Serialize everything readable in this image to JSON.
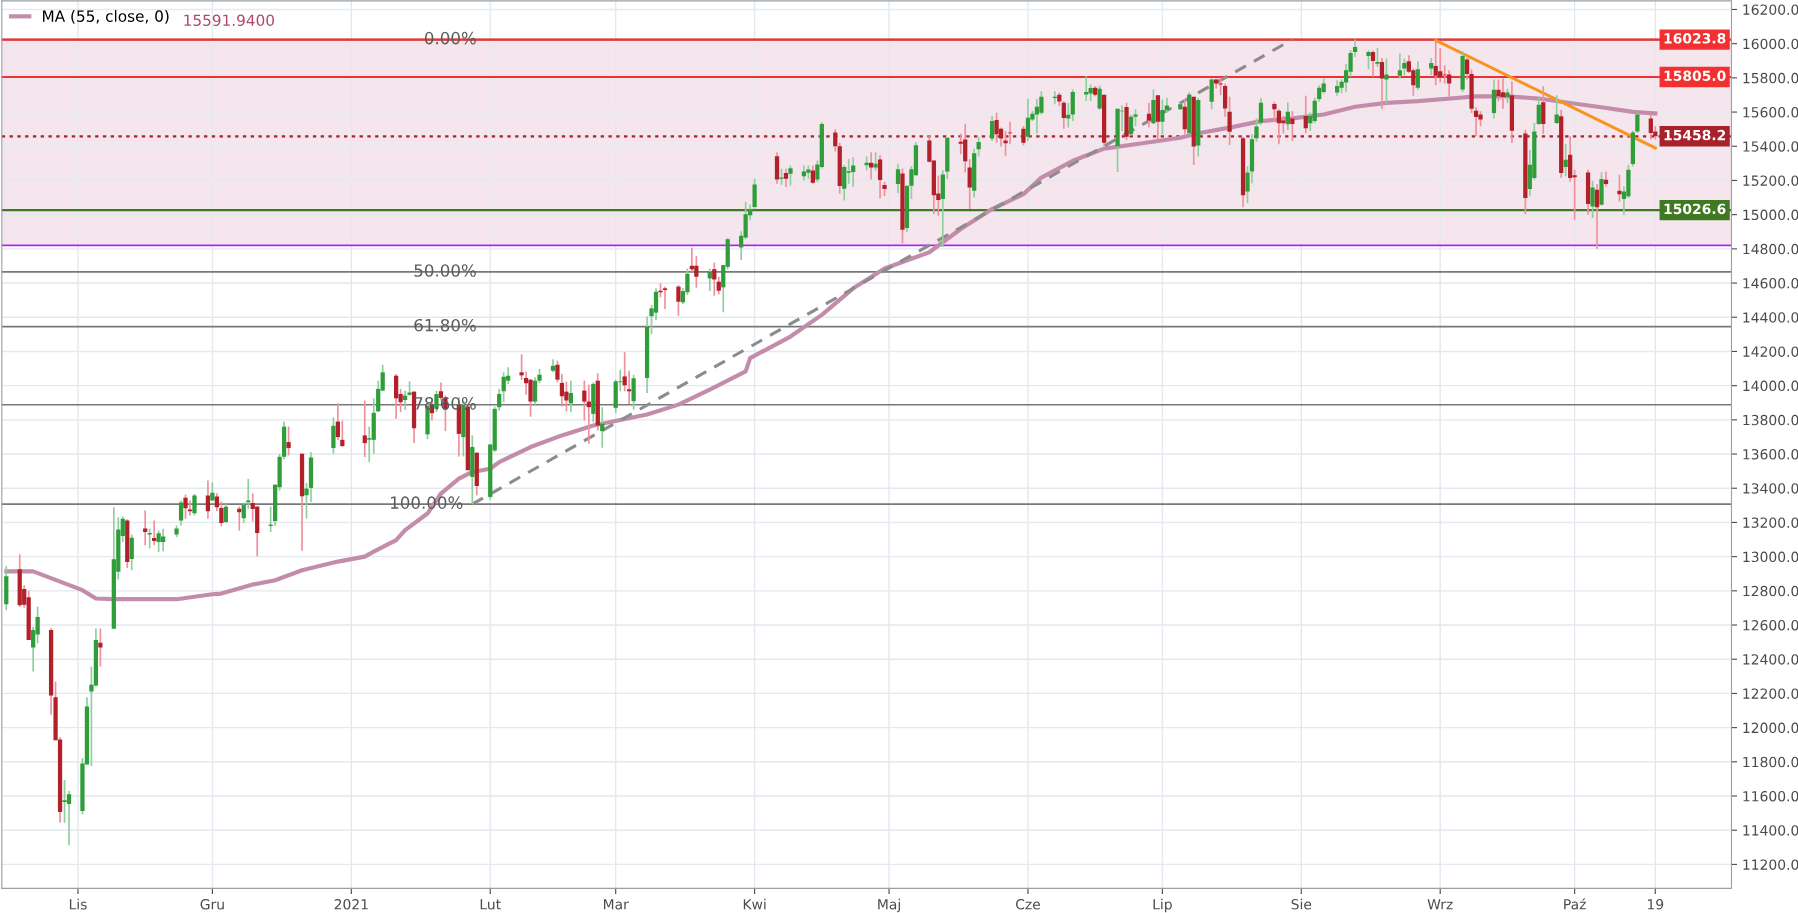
{
  "chart_data": {
    "type": "candlestick",
    "x": [
      "2020-10-16",
      "2020-10-19",
      "2020-10-20",
      "2020-10-21",
      "2020-10-22",
      "2020-10-23",
      "2020-10-26",
      "2020-10-27",
      "2020-10-28",
      "2020-10-29",
      "2020-10-30",
      "2020-11-02",
      "2020-11-03",
      "2020-11-04",
      "2020-11-05",
      "2020-11-06",
      "2020-11-09",
      "2020-11-10",
      "2020-11-11",
      "2020-11-12",
      "2020-11-13",
      "2020-11-16",
      "2020-11-17",
      "2020-11-18",
      "2020-11-19",
      "2020-11-20",
      "2020-11-23",
      "2020-11-24",
      "2020-11-25",
      "2020-11-26",
      "2020-11-27",
      "2020-11-30",
      "2020-12-01",
      "2020-12-02",
      "2020-12-03",
      "2020-12-04",
      "2020-12-07",
      "2020-12-08",
      "2020-12-09",
      "2020-12-10",
      "2020-12-11",
      "2020-12-14",
      "2020-12-15",
      "2020-12-16",
      "2020-12-17",
      "2020-12-18",
      "2020-12-21",
      "2020-12-22",
      "2020-12-23",
      "2020-12-28",
      "2020-12-29",
      "2020-12-30",
      "2021-01-04",
      "2021-01-05",
      "2021-01-06",
      "2021-01-07",
      "2021-01-08",
      "2021-01-11",
      "2021-01-12",
      "2021-01-13",
      "2021-01-14",
      "2021-01-15",
      "2021-01-18",
      "2021-01-19",
      "2021-01-20",
      "2021-01-21",
      "2021-01-22",
      "2021-01-25",
      "2021-01-26",
      "2021-01-27",
      "2021-01-28",
      "2021-01-29",
      "2021-02-01",
      "2021-02-02",
      "2021-02-03",
      "2021-02-04",
      "2021-02-05",
      "2021-02-08",
      "2021-02-09",
      "2021-02-10",
      "2021-02-11",
      "2021-02-12",
      "2021-02-15",
      "2021-02-16",
      "2021-02-17",
      "2021-02-18",
      "2021-02-19",
      "2021-02-22",
      "2021-02-23",
      "2021-02-24",
      "2021-02-25",
      "2021-02-26",
      "2021-03-01",
      "2021-03-02",
      "2021-03-03",
      "2021-03-04",
      "2021-03-05",
      "2021-03-08",
      "2021-03-09",
      "2021-03-10",
      "2021-03-11",
      "2021-03-12",
      "2021-03-15",
      "2021-03-16",
      "2021-03-17",
      "2021-03-18",
      "2021-03-19",
      "2021-03-22",
      "2021-03-23",
      "2021-03-24",
      "2021-03-25",
      "2021-03-26",
      "2021-03-29",
      "2021-03-30",
      "2021-03-31",
      "2021-04-01",
      "2021-04-06",
      "2021-04-07",
      "2021-04-08",
      "2021-04-09",
      "2021-04-12",
      "2021-04-13",
      "2021-04-14",
      "2021-04-15",
      "2021-04-16",
      "2021-04-19",
      "2021-04-20",
      "2021-04-21",
      "2021-04-22",
      "2021-04-23",
      "2021-04-26",
      "2021-04-27",
      "2021-04-28",
      "2021-04-29",
      "2021-04-30",
      "2021-05-03",
      "2021-05-04",
      "2021-05-05",
      "2021-05-06",
      "2021-05-07",
      "2021-05-10",
      "2021-05-11",
      "2021-05-12",
      "2021-05-13",
      "2021-05-14",
      "2021-05-17",
      "2021-05-18",
      "2021-05-19",
      "2021-05-20",
      "2021-05-21",
      "2021-05-24",
      "2021-05-25",
      "2021-05-26",
      "2021-05-27",
      "2021-05-28",
      "2021-05-31",
      "2021-06-01",
      "2021-06-02",
      "2021-06-03",
      "2021-06-04",
      "2021-06-07",
      "2021-06-08",
      "2021-06-09",
      "2021-06-10",
      "2021-06-11",
      "2021-06-14",
      "2021-06-15",
      "2021-06-16",
      "2021-06-17",
      "2021-06-18",
      "2021-06-21",
      "2021-06-22",
      "2021-06-23",
      "2021-06-24",
      "2021-06-25",
      "2021-06-28",
      "2021-06-29",
      "2021-06-30",
      "2021-07-01",
      "2021-07-02",
      "2021-07-05",
      "2021-07-06",
      "2021-07-07",
      "2021-07-08",
      "2021-07-09",
      "2021-07-12",
      "2021-07-13",
      "2021-07-14",
      "2021-07-15",
      "2021-07-16",
      "2021-07-19",
      "2021-07-20",
      "2021-07-21",
      "2021-07-22",
      "2021-07-23",
      "2021-07-26",
      "2021-07-27",
      "2021-07-28",
      "2021-07-29",
      "2021-07-30",
      "2021-08-02",
      "2021-08-03",
      "2021-08-04",
      "2021-08-05",
      "2021-08-06",
      "2021-08-09",
      "2021-08-10",
      "2021-08-11",
      "2021-08-12",
      "2021-08-13",
      "2021-08-16",
      "2021-08-17",
      "2021-08-18",
      "2021-08-19",
      "2021-08-20",
      "2021-08-23",
      "2021-08-24",
      "2021-08-25",
      "2021-08-26",
      "2021-08-27",
      "2021-08-30",
      "2021-08-31",
      "2021-09-01",
      "2021-09-02",
      "2021-09-03",
      "2021-09-06",
      "2021-09-07",
      "2021-09-08",
      "2021-09-09",
      "2021-09-10",
      "2021-09-13",
      "2021-09-14",
      "2021-09-15",
      "2021-09-16",
      "2021-09-17",
      "2021-09-20",
      "2021-09-21",
      "2021-09-22",
      "2021-09-23",
      "2021-09-24",
      "2021-09-27",
      "2021-09-28",
      "2021-09-29",
      "2021-09-30",
      "2021-10-01",
      "2021-10-04",
      "2021-10-05",
      "2021-10-06",
      "2021-10-07",
      "2021-10-08",
      "2021-10-11",
      "2021-10-12",
      "2021-10-13",
      "2021-10-14",
      "2021-10-15",
      "2021-10-18",
      "2021-10-19"
    ],
    "ohlc": [
      [
        12722,
        12944,
        12687,
        12885
      ],
      [
        12926,
        13014,
        12707,
        12716
      ],
      [
        12810,
        12833,
        12701,
        12718
      ],
      [
        12763,
        12800,
        12512,
        12512
      ],
      [
        12468,
        12590,
        12328,
        12571
      ],
      [
        12544,
        12707,
        12493,
        12647
      ],
      [
        12571,
        12581,
        12076,
        12188
      ],
      [
        12177,
        12270,
        11926,
        11926
      ],
      [
        11930,
        11945,
        11444,
        11507
      ],
      [
        11565,
        11693,
        11444,
        11575
      ],
      [
        11553,
        11629,
        11312,
        11610
      ],
      [
        11512,
        11823,
        11493,
        11790
      ],
      [
        11784,
        12177,
        11784,
        12124
      ],
      [
        12211,
        12357,
        11775,
        12250
      ],
      [
        12246,
        12580,
        12241,
        12512
      ],
      [
        12497,
        12580,
        12357,
        12468
      ],
      [
        12578,
        13289,
        12578,
        12984
      ],
      [
        12911,
        13231,
        12866,
        13159
      ],
      [
        13120,
        13235,
        13085,
        13221
      ],
      [
        13212,
        13219,
        12934,
        12969
      ],
      [
        12986,
        13130,
        12920,
        13111
      ],
      [
        13165,
        13270,
        13066,
        13144
      ],
      [
        13130,
        13163,
        13047,
        13138
      ],
      [
        13109,
        13212,
        13066,
        13091
      ],
      [
        13085,
        13153,
        13027,
        13136
      ],
      [
        13085,
        13163,
        13031,
        13118
      ],
      [
        13130,
        13182,
        13115,
        13165
      ],
      [
        13212,
        13328,
        13182,
        13316
      ],
      [
        13344,
        13363,
        13221,
        13283
      ],
      [
        13276,
        13328,
        13241,
        13266
      ],
      [
        13254,
        13367,
        13241,
        13357
      ],
      [
        13357,
        13445,
        13221,
        13266
      ],
      [
        13328,
        13433,
        13328,
        13373
      ],
      [
        13351,
        13371,
        13266,
        13289
      ],
      [
        13285,
        13322,
        13177,
        13196
      ],
      [
        13202,
        13309,
        13196,
        13291
      ],
      [
        13280,
        13293,
        13153,
        13260
      ],
      [
        13225,
        13316,
        13196,
        13303
      ],
      [
        13318,
        13454,
        13280,
        13328
      ],
      [
        13314,
        13371,
        13206,
        13278
      ],
      [
        13293,
        13293,
        13002,
        13138
      ],
      [
        13179,
        13293,
        13144,
        13187
      ],
      [
        13208,
        13421,
        13181,
        13421
      ],
      [
        13406,
        13600,
        13386,
        13584
      ],
      [
        13584,
        13790,
        13570,
        13760
      ],
      [
        13670,
        13761,
        13592,
        13635
      ],
      [
        13602,
        13602,
        13035,
        13353
      ],
      [
        13359,
        13431,
        13223,
        13398
      ],
      [
        13402,
        13612,
        13320,
        13580
      ],
      [
        13635,
        13815,
        13602,
        13765
      ],
      [
        13790,
        13897,
        13680,
        13699
      ],
      [
        13683,
        13796,
        13641,
        13647
      ],
      [
        13709,
        13913,
        13582,
        13664
      ],
      [
        13684,
        13761,
        13553,
        13693
      ],
      [
        13683,
        13926,
        13602,
        13841
      ],
      [
        13850,
        14029,
        13845,
        13981
      ],
      [
        13971,
        14122,
        13967,
        14078
      ],
      [
        14058,
        14068,
        13806,
        13926
      ],
      [
        13951,
        13981,
        13845,
        13903
      ],
      [
        13916,
        13971,
        13858,
        13942
      ],
      [
        13946,
        14025,
        13942,
        13960
      ],
      [
        13965,
        13965,
        13664,
        13751
      ],
      [
        13715,
        13903,
        13687,
        13882
      ],
      [
        13887,
        13913,
        13796,
        13839
      ],
      [
        13865,
        13971,
        13845,
        13951
      ],
      [
        13967,
        14019,
        13913,
        13928
      ],
      [
        13928,
        13942,
        13734,
        13860
      ],
      [
        13887,
        13932,
        13586,
        13718
      ],
      [
        13699,
        13913,
        13586,
        13887
      ],
      [
        13878,
        13878,
        13505,
        13505
      ],
      [
        13466,
        13709,
        13307,
        13641
      ],
      [
        13608,
        13608,
        13359,
        13413
      ],
      [
        13349,
        13656,
        13334,
        13656
      ],
      [
        13621,
        13878,
        13612,
        13864
      ],
      [
        13874,
        13981,
        13854,
        13951
      ],
      [
        13967,
        14078,
        13903,
        14052
      ],
      [
        14029,
        14107,
        14010,
        14058
      ],
      [
        14078,
        14184,
        14033,
        14060
      ],
      [
        14045,
        14082,
        13948,
        14014
      ],
      [
        14035,
        14035,
        13819,
        13907
      ],
      [
        13907,
        14049,
        13883,
        14029
      ],
      [
        14029,
        14097,
        14014,
        14064
      ],
      [
        14087,
        14155,
        14078,
        14116
      ],
      [
        14122,
        14146,
        14019,
        14035
      ],
      [
        14016,
        14068,
        13878,
        13938
      ],
      [
        13965,
        14023,
        13849,
        13913
      ],
      [
        13897,
        14029,
        13845,
        13957
      ],
      [
        13971,
        14029,
        13796,
        13907
      ],
      [
        13907,
        14006,
        13660,
        13874
      ],
      [
        13835,
        14019,
        13786,
        14010
      ],
      [
        14029,
        14072,
        13738,
        13767
      ],
      [
        13734,
        13874,
        13637,
        13778
      ],
      [
        13870,
        14035,
        13841,
        14025
      ],
      [
        14020,
        14093,
        13967,
        14025
      ],
      [
        14054,
        14196,
        13967,
        14002
      ],
      [
        13979,
        14087,
        13893,
        13967
      ],
      [
        13909,
        14064,
        13860,
        14043
      ],
      [
        14045,
        14404,
        13957,
        14344
      ],
      [
        14406,
        14472,
        14301,
        14452
      ],
      [
        14427,
        14569,
        14384,
        14549
      ],
      [
        14555,
        14598,
        14516,
        14546
      ],
      [
        14569,
        14579,
        14448,
        14559
      ],
      [
        14579,
        14588,
        14408,
        14491
      ],
      [
        14487,
        14569,
        14476,
        14553
      ],
      [
        14546,
        14685,
        14530,
        14654
      ],
      [
        14701,
        14806,
        14666,
        14680
      ],
      [
        14701,
        14759,
        14573,
        14637
      ],
      [
        14627,
        14685,
        14553,
        14666
      ],
      [
        14681,
        14720,
        14526,
        14621
      ],
      [
        14608,
        14637,
        14534,
        14555
      ],
      [
        14575,
        14705,
        14429,
        14705
      ],
      [
        14695,
        14864,
        14681,
        14856
      ],
      [
        14808,
        14903,
        14734,
        14876
      ],
      [
        14866,
        15074,
        14856,
        15002
      ],
      [
        14996,
        15060,
        14967,
        15031
      ],
      [
        15045,
        15210,
        15031,
        15177
      ],
      [
        15342,
        15365,
        15181,
        15206
      ],
      [
        15210,
        15268,
        15175,
        15217
      ],
      [
        15243,
        15268,
        15161,
        15210
      ],
      [
        15239,
        15287,
        15171,
        15272
      ],
      [
        15225,
        15287,
        15200,
        15252
      ],
      [
        15245,
        15287,
        15210,
        15264
      ],
      [
        15258,
        15287,
        15181,
        15186
      ],
      [
        15206,
        15317,
        15190,
        15293
      ],
      [
        15278,
        15540,
        15270,
        15530
      ],
      [
        15480,
        15500,
        15370,
        15400
      ],
      [
        15400,
        15420,
        15122,
        15167
      ],
      [
        15151,
        15290,
        15083,
        15278
      ],
      [
        15245,
        15326,
        15181,
        15254
      ],
      [
        15250,
        15336,
        15161,
        15287
      ],
      [
        15289,
        15342,
        15258,
        15303
      ],
      [
        15303,
        15365,
        15206,
        15276
      ],
      [
        15276,
        15365,
        15258,
        15297
      ],
      [
        15322,
        15347,
        15095,
        15202
      ],
      [
        15173,
        15192,
        15109,
        15150
      ],
      [
        15179,
        15297,
        15126,
        15266
      ],
      [
        15241,
        15270,
        14833,
        14911
      ],
      [
        14922,
        15169,
        14897,
        15169
      ],
      [
        15169,
        15285,
        15091,
        15266
      ],
      [
        15231,
        15425,
        15227,
        15406
      ],
      [
        15433,
        15464,
        15305,
        15309
      ],
      [
        15316,
        15316,
        15004,
        15114
      ],
      [
        15124,
        15227,
        14994,
        15085
      ],
      [
        15091,
        15260,
        14810,
        15235
      ],
      [
        15252,
        15450,
        15208,
        15450
      ],
      [
        15427,
        15474,
        15353,
        15415
      ],
      [
        15439,
        15532,
        15247,
        15313
      ],
      [
        15276,
        15324,
        15033,
        15159
      ],
      [
        15140,
        15386,
        15101,
        15359
      ],
      [
        15383,
        15456,
        15340,
        15425
      ],
      [
        15445,
        15577,
        15431,
        15548
      ],
      [
        15553,
        15596,
        15421,
        15470
      ],
      [
        15503,
        15509,
        15398,
        15445
      ],
      [
        15433,
        15489,
        15344,
        15417
      ],
      [
        15480,
        15544,
        15412,
        15476
      ],
      [
        15503,
        15518,
        15406,
        15421
      ],
      [
        15456,
        15678,
        15431,
        15567
      ],
      [
        15557,
        15606,
        15548,
        15590
      ],
      [
        15586,
        15678,
        15474,
        15631
      ],
      [
        15596,
        15722,
        15586,
        15689
      ],
      [
        15682,
        15722,
        15645,
        15689
      ],
      [
        15701,
        15713,
        15635,
        15662
      ],
      [
        15654,
        15664,
        15503,
        15565
      ],
      [
        15563,
        15654,
        15509,
        15584
      ],
      [
        15586,
        15732,
        15548,
        15718
      ],
      [
        15703,
        15810,
        15664,
        15718
      ],
      [
        15709,
        15761,
        15664,
        15740
      ],
      [
        15742,
        15751,
        15693,
        15701
      ],
      [
        15621,
        15755,
        15612,
        15736
      ],
      [
        15701,
        15701,
        15402,
        15421
      ],
      [
        15400,
        15619,
        15250,
        15619
      ],
      [
        15604,
        15639,
        15489,
        15608
      ],
      [
        15629,
        15654,
        15437,
        15456
      ],
      [
        15470,
        15586,
        15464,
        15573
      ],
      [
        15573,
        15616,
        15518,
        15586
      ],
      [
        15590,
        15654,
        15509,
        15551
      ],
      [
        15534,
        15732,
        15528,
        15670
      ],
      [
        15699,
        15699,
        15441,
        15544
      ],
      [
        15544,
        15674,
        15470,
        15612
      ],
      [
        15612,
        15684,
        15596,
        15639
      ],
      [
        15616,
        15654,
        15612,
        15645
      ],
      [
        15631,
        15676,
        15470,
        15499
      ],
      [
        15476,
        15718,
        15476,
        15703
      ],
      [
        15689,
        15689,
        15291,
        15398
      ],
      [
        15404,
        15683,
        15340,
        15670
      ],
      [
        15660,
        15796,
        15617,
        15790
      ],
      [
        15790,
        15796,
        15738,
        15767
      ],
      [
        15767,
        15800,
        15699,
        15761
      ],
      [
        15753,
        15767,
        15573,
        15621
      ],
      [
        15602,
        15689,
        15408,
        15485
      ],
      [
        15447,
        15456,
        15043,
        15113
      ],
      [
        15136,
        15285,
        15068,
        15247
      ],
      [
        15252,
        15470,
        15184,
        15441
      ],
      [
        15447,
        15563,
        15427,
        15515
      ],
      [
        15538,
        15683,
        15524,
        15654
      ],
      [
        15647,
        15660,
        15544,
        15616
      ],
      [
        15608,
        15617,
        15412,
        15534
      ],
      [
        15551,
        15577,
        15476,
        15534
      ],
      [
        15528,
        15656,
        15495,
        15602
      ],
      [
        15563,
        15606,
        15431,
        15530
      ],
      [
        15577,
        15695,
        15476,
        15505
      ],
      [
        15534,
        15598,
        15489,
        15579
      ],
      [
        15547,
        15683,
        15534,
        15666
      ],
      [
        15676,
        15757,
        15660,
        15742
      ],
      [
        15718,
        15796,
        15709,
        15767
      ],
      [
        15715,
        15786,
        15695,
        15753
      ],
      [
        15742,
        15792,
        15709,
        15777
      ],
      [
        15773,
        15883,
        15718,
        15845
      ],
      [
        15835,
        15961,
        15806,
        15946
      ],
      [
        15951,
        16024,
        15922,
        15981
      ],
      [
        15928,
        15961,
        15850,
        15951
      ],
      [
        15951,
        15961,
        15806,
        15899
      ],
      [
        15883,
        15975,
        15864,
        15893
      ],
      [
        15893,
        15916,
        15617,
        15796
      ],
      [
        15790,
        15913,
        15650,
        15819
      ],
      [
        15812,
        15942,
        15796,
        15845
      ],
      [
        15854,
        15913,
        15815,
        15887
      ],
      [
        15897,
        15932,
        15829,
        15835
      ],
      [
        15845,
        15854,
        15695,
        15757
      ],
      [
        15742,
        15897,
        15728,
        15850
      ],
      [
        15854,
        15916,
        15815,
        15887
      ],
      [
        15870,
        16019,
        15757,
        15812
      ],
      [
        15839,
        15975,
        15773,
        15802
      ],
      [
        15819,
        15874,
        15767,
        15815
      ],
      [
        15819,
        15845,
        15689,
        15767
      ],
      [
        15732,
        15955,
        15718,
        15928
      ],
      [
        15907,
        15917,
        15790,
        15823
      ],
      [
        15823,
        15849,
        15595,
        15620
      ],
      [
        15608,
        15628,
        15458,
        15571
      ],
      [
        15585,
        15604,
        15517,
        15556
      ],
      [
        15595,
        15790,
        15562,
        15731
      ],
      [
        15731,
        15790,
        15663,
        15692
      ],
      [
        15716,
        15796,
        15620,
        15688
      ],
      [
        15688,
        15737,
        15653,
        15714
      ],
      [
        15698,
        15780,
        15419,
        15491
      ],
      [
        15474,
        15497,
        15003,
        15097
      ],
      [
        15150,
        15380,
        15107,
        15292
      ],
      [
        15214,
        15536,
        15204,
        15487
      ],
      [
        15530,
        15683,
        15526,
        15643
      ],
      [
        15657,
        15751,
        15472,
        15530
      ],
      [
        15536,
        15698,
        15530,
        15585
      ],
      [
        15575,
        15614,
        15214,
        15243
      ],
      [
        15278,
        15413,
        15224,
        15321
      ],
      [
        15351,
        15458,
        15194,
        15214
      ],
      [
        15230,
        15263,
        14970,
        15218
      ],
      [
        15247,
        15263,
        14999,
        15062
      ],
      [
        15048,
        15198,
        14980,
        15159
      ],
      [
        15146,
        15179,
        14800,
        15044
      ],
      [
        15058,
        15249,
        15054,
        15208
      ],
      [
        15204,
        15253,
        15165,
        15179
      ],
      [
        15140,
        15233,
        15077,
        15120
      ],
      [
        15091,
        15165,
        14999,
        15136
      ],
      [
        15107,
        15292,
        15097,
        15263
      ],
      [
        15296,
        15491,
        15282,
        15481
      ],
      [
        15487,
        15595,
        15477,
        15585
      ],
      [
        15562,
        15585,
        15439,
        15478
      ],
      [
        15487,
        15517,
        15439,
        15458.2
      ]
    ],
    "series": [
      {
        "name": "MA (55, close, 0)",
        "type": "line",
        "color": "#c48cab",
        "x": [
          "2020-10-16",
          "2020-10-22",
          "2020-11-02",
          "2020-11-05",
          "2020-11-09",
          "2020-11-23",
          "2020-12-01",
          "2020-12-03",
          "2020-12-10",
          "2020-12-15",
          "2020-12-21",
          "2020-12-29",
          "2021-01-04",
          "2021-01-06",
          "2021-01-11",
          "2021-01-13",
          "2021-01-18",
          "2021-01-21",
          "2021-01-25",
          "2021-01-28",
          "2021-02-01",
          "2021-02-03",
          "2021-02-10",
          "2021-02-17",
          "2021-02-24",
          "2021-03-08",
          "2021-03-15",
          "2021-03-22",
          "2021-03-30",
          "2021-03-31",
          "2021-04-09",
          "2021-04-16",
          "2021-04-23",
          "2021-04-30",
          "2021-05-10",
          "2021-05-17",
          "2021-05-24",
          "2021-05-31",
          "2021-06-04",
          "2021-06-11",
          "2021-06-18",
          "2021-06-25",
          "2021-07-05",
          "2021-07-09",
          "2021-07-16",
          "2021-07-23",
          "2021-07-30",
          "2021-08-06",
          "2021-08-13",
          "2021-08-20",
          "2021-08-27",
          "2021-09-06",
          "2021-09-09",
          "2021-09-16",
          "2021-09-23",
          "2021-09-30",
          "2021-10-07",
          "2021-10-14",
          "2021-10-19"
        ],
        "values": [
          12914,
          12914,
          12804,
          12755,
          12751,
          12751,
          12780,
          12784,
          12837,
          12862,
          12920,
          12971,
          13000,
          13029,
          13097,
          13155,
          13252,
          13369,
          13456,
          13495,
          13514,
          13553,
          13641,
          13709,
          13767,
          13831,
          13889,
          13977,
          14083,
          14161,
          14287,
          14414,
          14569,
          14685,
          14780,
          14916,
          15033,
          15120,
          15217,
          15315,
          15386,
          15412,
          15450,
          15476,
          15509,
          15547,
          15563,
          15586,
          15631,
          15654,
          15664,
          15685,
          15692,
          15692,
          15679,
          15653,
          15628,
          15601,
          15592
        ]
      },
      {
        "type": "line",
        "color": "#f7941d",
        "x": [
          "2021-08-31",
          "2021-10-19"
        ],
        "values": [
          16019,
          15390
        ]
      },
      {
        "type": "line",
        "color": "#8c8c8c",
        "line_style": "dashed",
        "x": [
          "2021-01-28",
          "2021-07-30"
        ],
        "values": [
          13307,
          16024
        ]
      }
    ],
    "ref_lines": [
      {
        "axis": "y",
        "value": 16023.8,
        "color": "#787878"
      },
      {
        "axis": "y",
        "value": 14665,
        "color": "#787878"
      },
      {
        "axis": "y",
        "value": 14345,
        "color": "#787878"
      },
      {
        "axis": "y",
        "value": 13888,
        "color": "#787878"
      },
      {
        "axis": "y",
        "value": 13307,
        "color": "#787878"
      },
      {
        "axis": "y",
        "value": 14820,
        "color": "#b026f0"
      },
      {
        "axis": "y",
        "value": 16023.8,
        "label": "16023.8",
        "color": "#f23030"
      },
      {
        "axis": "y",
        "value": 15805.0,
        "label": "15805.0",
        "color": "#f23030"
      },
      {
        "axis": "y",
        "value": 15458.2,
        "label": "15458.2",
        "color": "#a8222c",
        "line_style": "dotted"
      },
      {
        "axis": "y",
        "value": 15026.6,
        "label": "15026.6",
        "color": "#3f7a22"
      }
    ],
    "bands": [
      {
        "axis": "y",
        "from": 14820,
        "to": 16023.8,
        "color": "#f5e6ee"
      }
    ],
    "annotations": [
      "15591.9400",
      {
        "text": "0.00%",
        "x": "2021-01-29",
        "y": 16023.8
      },
      {
        "text": "50.00%",
        "x": "2021-01-29",
        "y": 14665
      },
      {
        "text": "61.80%",
        "x": "2021-01-29",
        "y": 14345
      },
      {
        "text": "78.60%",
        "x": "2021-01-29",
        "y": 13888
      },
      {
        "text": "100.00%",
        "x": "2021-01-26",
        "y": 13307
      }
    ],
    "xlim": [
      "2020-10-15",
      "2021-11-05"
    ],
    "xticks": [
      {
        "value": "2020-11-01",
        "label": "Lis"
      },
      {
        "value": "2020-12-01",
        "label": "Gru"
      },
      {
        "value": "2021-01-01",
        "label": "2021"
      },
      {
        "value": "2021-02-01",
        "label": "Lut"
      },
      {
        "value": "2021-03-01",
        "label": "Mar"
      },
      {
        "value": "2021-04-01",
        "label": "Kwi"
      },
      {
        "value": "2021-05-01",
        "label": "Maj"
      },
      {
        "value": "2021-06-01",
        "label": "Cze"
      },
      {
        "value": "2021-07-01",
        "label": "Lip"
      },
      {
        "value": "2021-08-01",
        "label": "Sie"
      },
      {
        "value": "2021-09-01",
        "label": "Wrz"
      },
      {
        "value": "2021-10-01",
        "label": "Paź"
      },
      {
        "value": "2021-10-19",
        "label": "19"
      }
    ],
    "ylim": [
      11060,
      16250
    ],
    "yticks": [
      {
        "value": 11200,
        "label": "11200.0"
      },
      {
        "value": 11400,
        "label": "11400.0"
      },
      {
        "value": 11600,
        "label": "11600.0"
      },
      {
        "value": 11800,
        "label": "11800.0"
      },
      {
        "value": 12000,
        "label": "12000.0"
      },
      {
        "value": 12200,
        "label": "12200.0"
      },
      {
        "value": 12400,
        "label": "12400.0"
      },
      {
        "value": 12600,
        "label": "12600.0"
      },
      {
        "value": 12800,
        "label": "12800.0"
      },
      {
        "value": 13000,
        "label": "13000.0"
      },
      {
        "value": 13200,
        "label": "13200.0"
      },
      {
        "value": 13400,
        "label": "13400.0"
      },
      {
        "value": 13600,
        "label": "13600.0"
      },
      {
        "value": 13800,
        "label": "13800.0"
      },
      {
        "value": 14000,
        "label": "14000.0"
      },
      {
        "value": 14200,
        "label": "14200.0"
      },
      {
        "value": 14400,
        "label": "14400.0"
      },
      {
        "value": 14600,
        "label": "14600.0"
      },
      {
        "value": 14800,
        "label": "14800.0"
      },
      {
        "value": 15000,
        "label": "15000.0"
      },
      {
        "value": 15200,
        "label": "15200.0"
      },
      {
        "value": 15400,
        "label": "15400.0"
      },
      {
        "value": 15600,
        "label": "15600.0"
      },
      {
        "value": 15800,
        "label": "15800.0"
      },
      {
        "value": 16000,
        "label": "16000.0"
      },
      {
        "value": 16200,
        "label": "16200.0"
      }
    ],
    "grid": true,
    "legend": "top left"
  }
}
